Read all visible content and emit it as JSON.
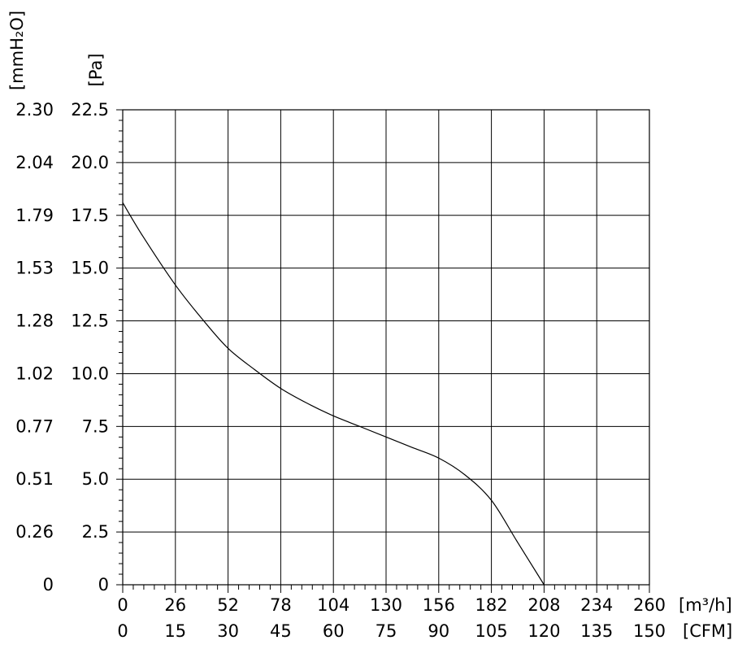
{
  "chart_data": {
    "type": "line",
    "unit_labels": {
      "y_mmh2o": "[mmH₂O]",
      "y_pa": "[Pa]",
      "x_m3h": "[m³/h]",
      "x_cfm": "[CFM]"
    },
    "y_ticks_pa": [
      "0",
      "2.5",
      "5.0",
      "7.5",
      "10.0",
      "12.5",
      "15.0",
      "17.5",
      "20.0",
      "22.5"
    ],
    "y_ticks_mmh2o": [
      "0",
      "0.26",
      "0.51",
      "0.77",
      "1.02",
      "1.28",
      "1.53",
      "1.79",
      "2.04",
      "2.30"
    ],
    "x_ticks_m3h": [
      "0",
      "26",
      "52",
      "78",
      "104",
      "130",
      "156",
      "182",
      "208",
      "234",
      "260"
    ],
    "x_ticks_cfm": [
      "0",
      "15",
      "30",
      "45",
      "60",
      "75",
      "90",
      "105",
      "120",
      "135",
      "150"
    ],
    "xlim": [
      0,
      260
    ],
    "ylim": [
      0,
      22.5
    ],
    "grid": true,
    "series": [
      {
        "x": [
          0,
          10,
          26,
          40,
          52,
          65,
          78,
          91,
          104,
          117,
          130,
          143,
          156,
          169,
          182,
          195,
          208
        ],
        "y": [
          18.1,
          16.5,
          14.2,
          12.5,
          11.2,
          10.2,
          9.3,
          8.6,
          8.0,
          7.5,
          7.0,
          6.5,
          6.0,
          5.2,
          4.0,
          2.0,
          0
        ]
      }
    ]
  }
}
